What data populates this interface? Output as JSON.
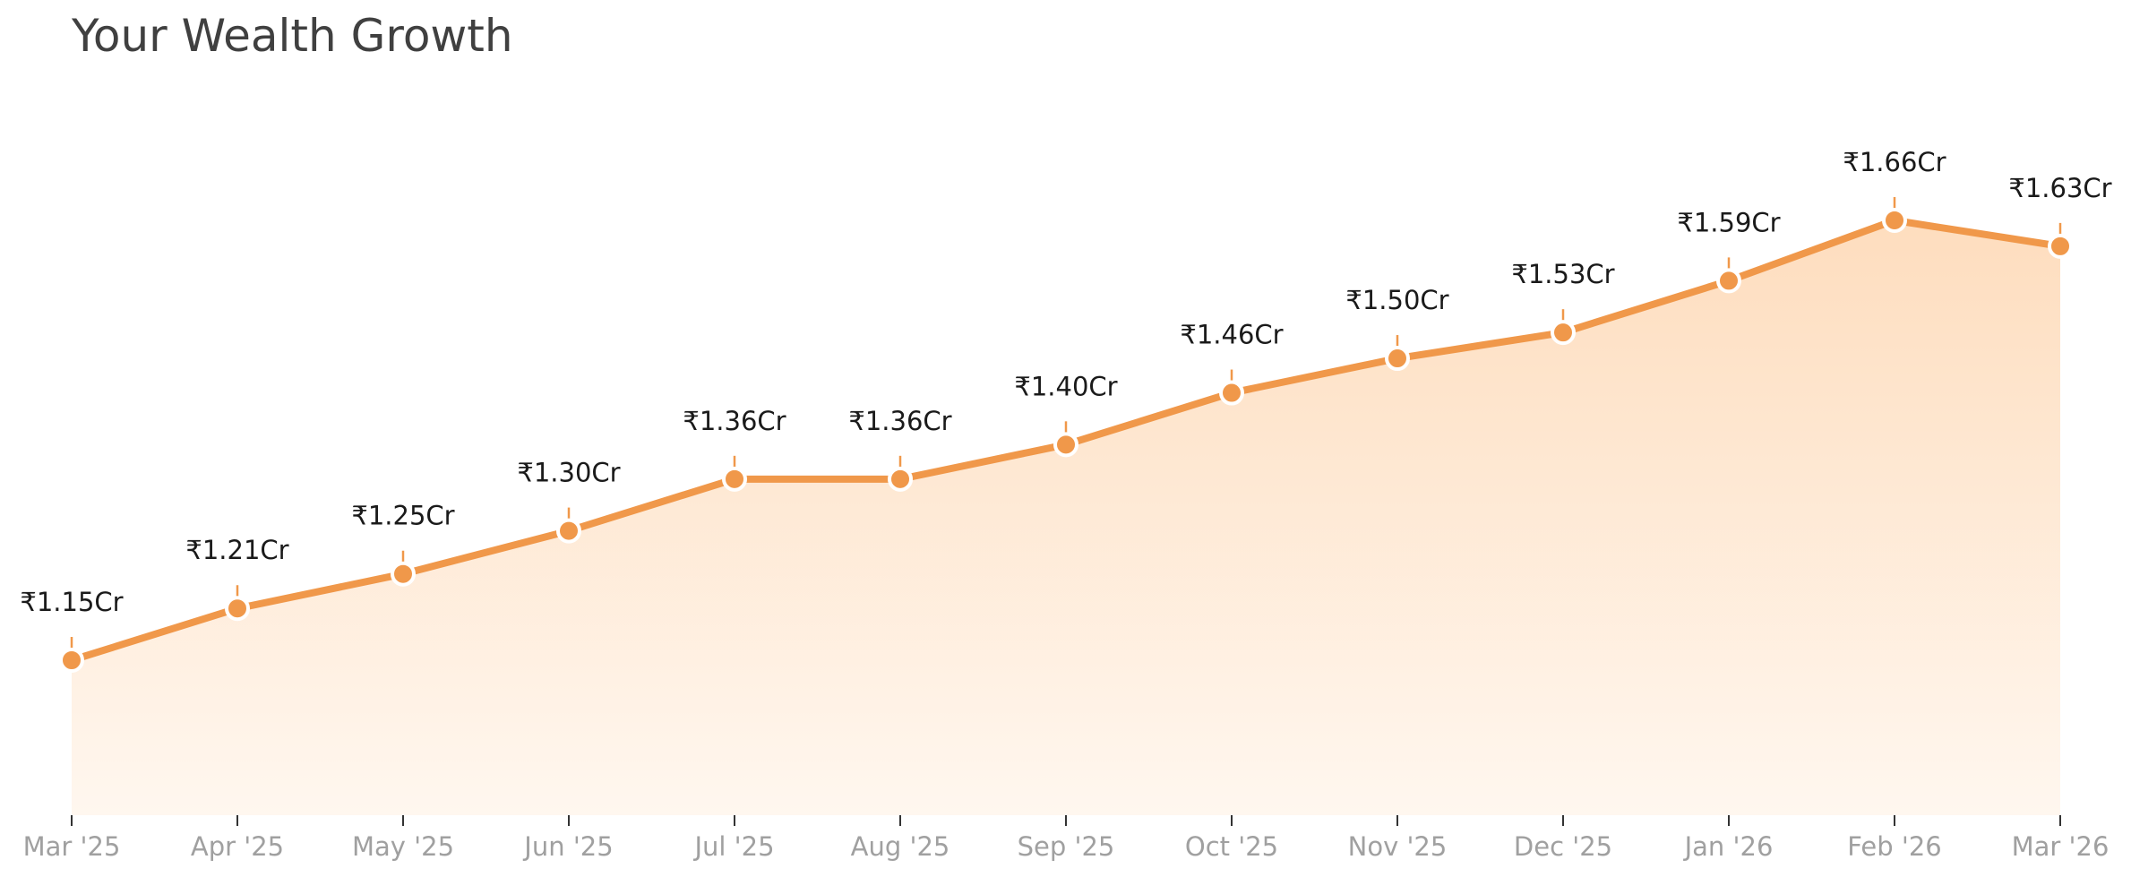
{
  "chart_data": {
    "type": "area",
    "title": "Your Wealth Growth",
    "xlabel": "",
    "ylabel": "",
    "categories": [
      "Mar '25",
      "Apr '25",
      "May '25",
      "Jun '25",
      "Jul '25",
      "Aug '25",
      "Sep '25",
      "Oct '25",
      "Nov '25",
      "Dec '25",
      "Jan '26",
      "Feb '26",
      "Mar '26"
    ],
    "values": [
      1.15,
      1.21,
      1.25,
      1.3,
      1.36,
      1.36,
      1.4,
      1.46,
      1.5,
      1.53,
      1.59,
      1.66,
      1.63
    ],
    "value_labels": [
      "₹1.15Cr",
      "₹1.21Cr",
      "₹1.25Cr",
      "₹1.30Cr",
      "₹1.36Cr",
      "₹1.36Cr",
      "₹1.40Cr",
      "₹1.46Cr",
      "₹1.50Cr",
      "₹1.53Cr",
      "₹1.59Cr",
      "₹1.66Cr",
      "₹1.63Cr"
    ],
    "unit": "₹ Cr",
    "ylim": [
      0.97,
      1.72
    ],
    "grid": false,
    "y_axis_visible": false,
    "colors": {
      "line": "#F0984A",
      "marker": "#F0984A",
      "marker_edge": "#ffffff",
      "fill_top": "#FEDDBE",
      "fill_bottom": "#FFF7EF",
      "axis": "#333333",
      "tick_label": "#a0a0a0",
      "data_label": "#1a1a1a",
      "title": "#404040"
    }
  }
}
